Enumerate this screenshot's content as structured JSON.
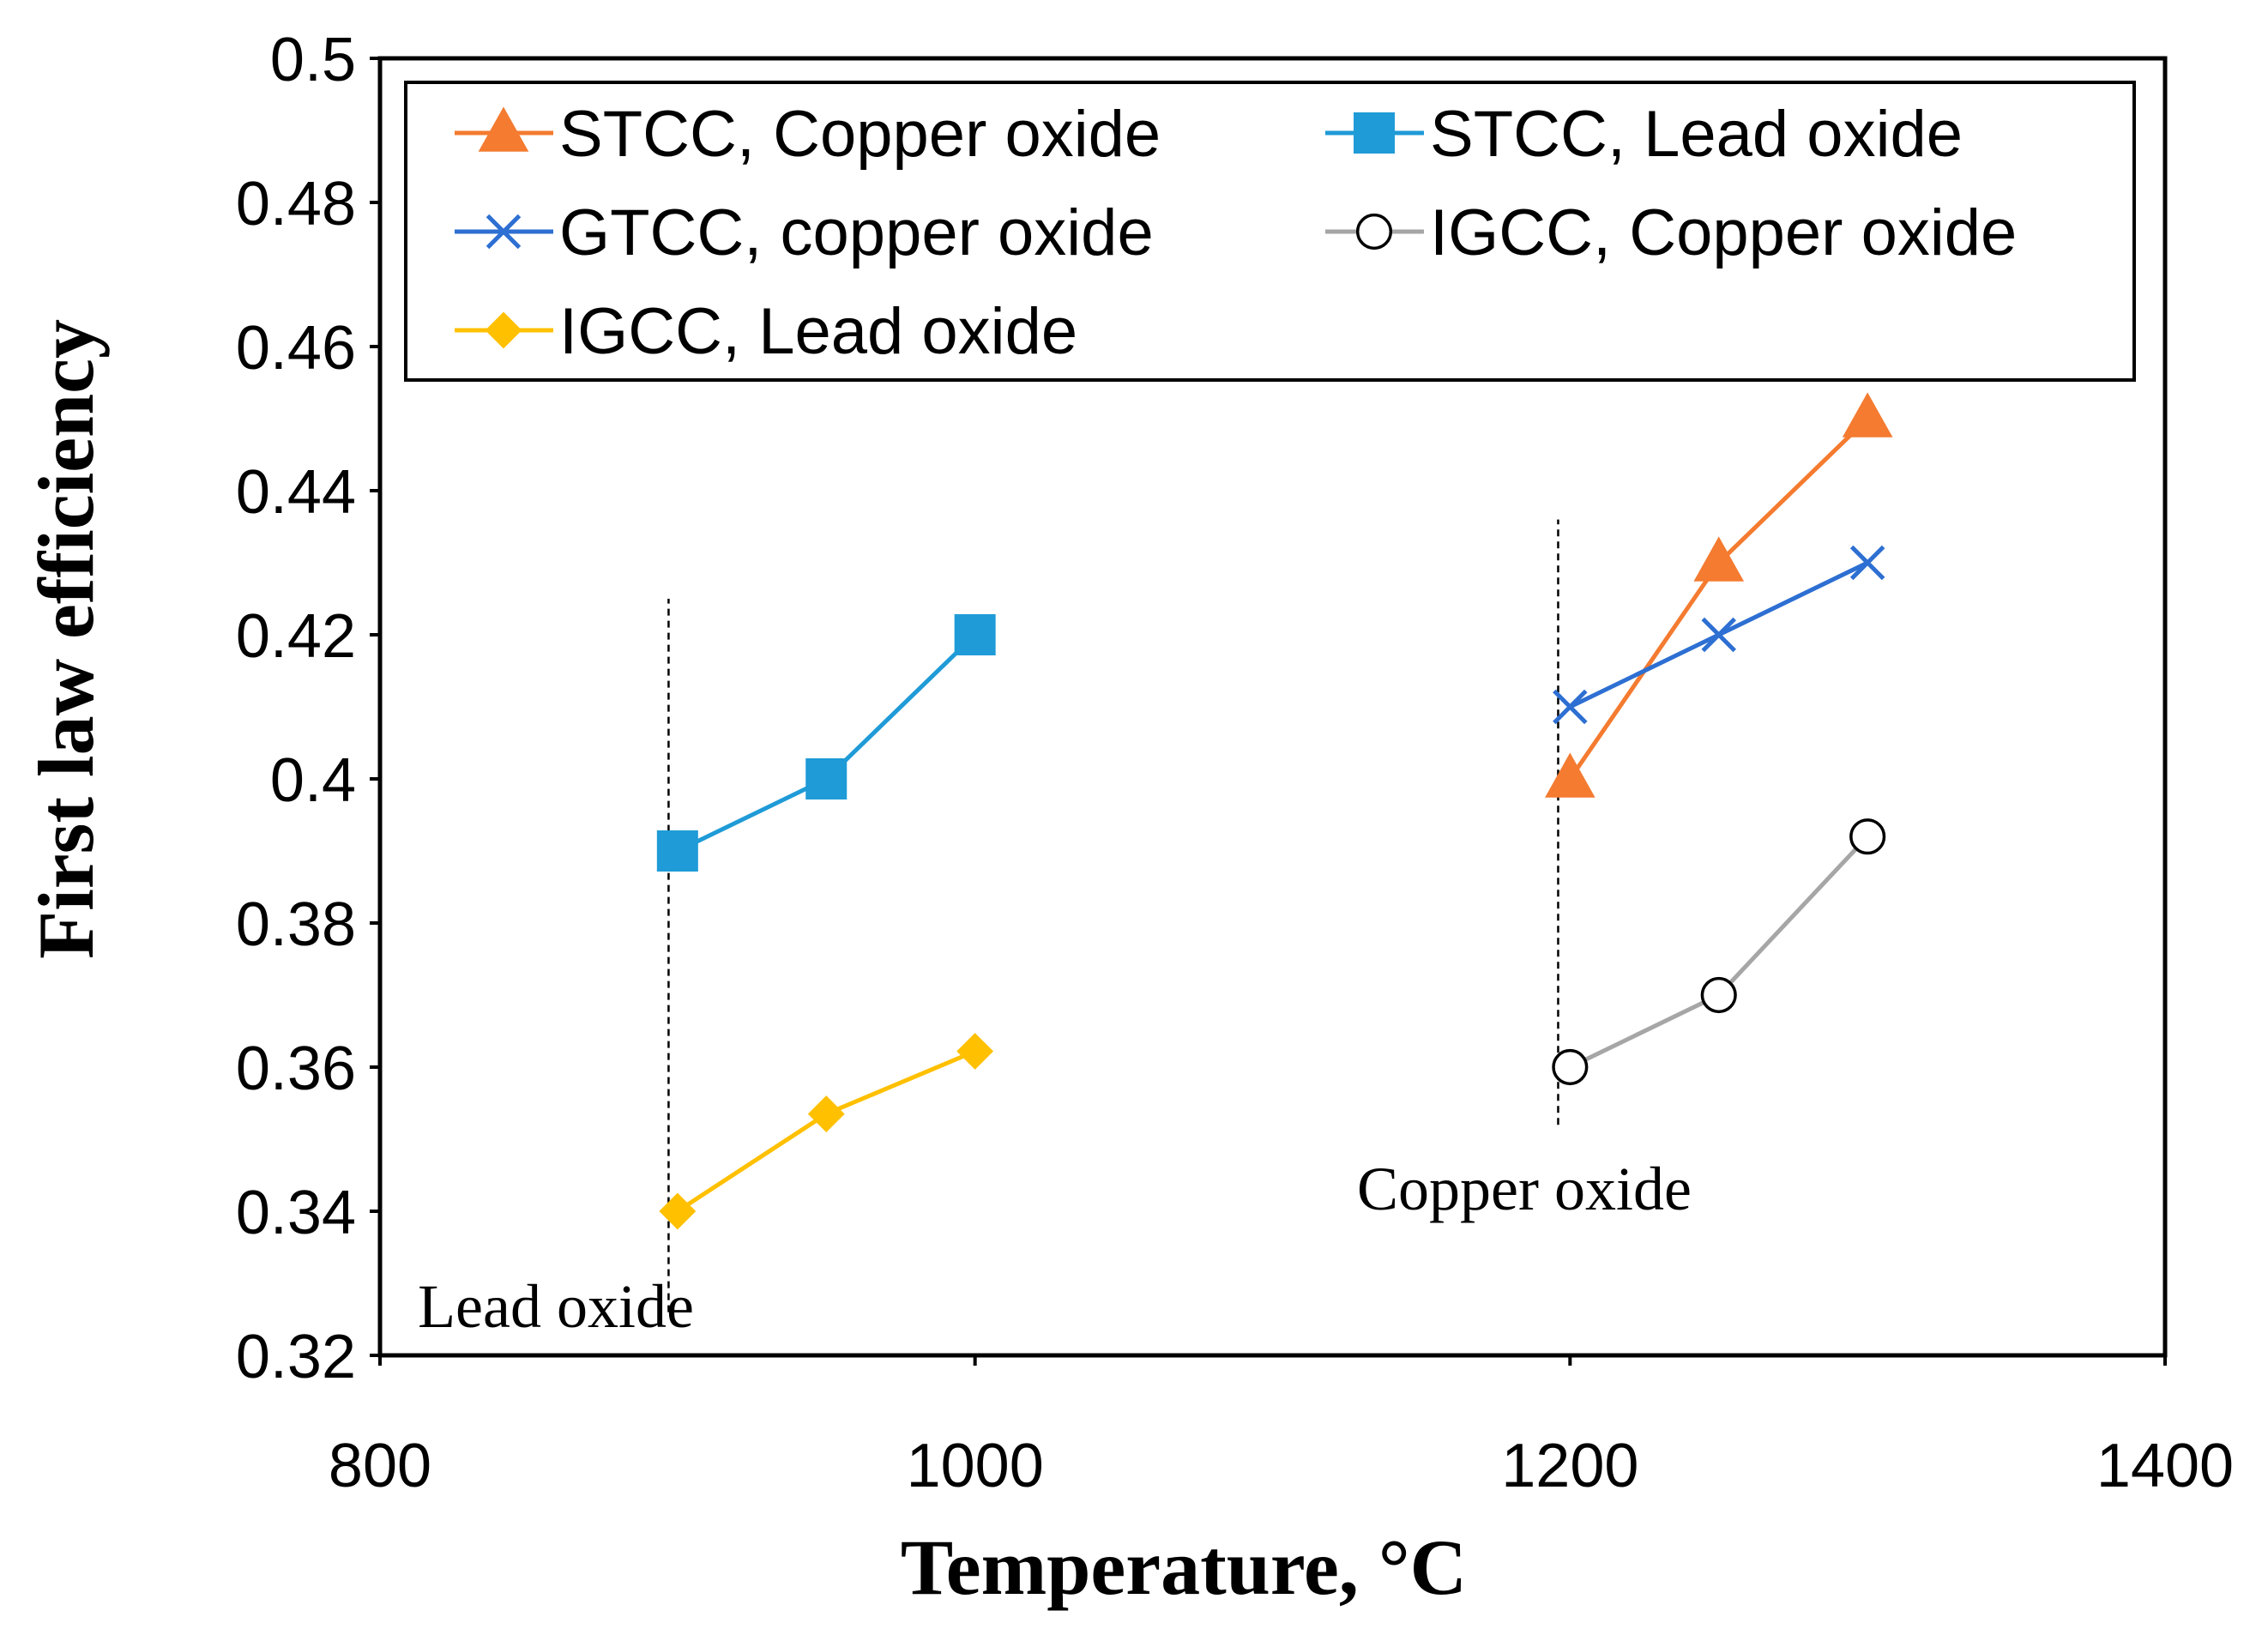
{
  "chart_data": {
    "type": "line",
    "title": "",
    "xlabel": "Temperature, °C",
    "ylabel": "First law efficiency",
    "xlim": [
      800,
      1400
    ],
    "ylim": [
      0.32,
      0.5
    ],
    "x_ticks": [
      800,
      1000,
      1200,
      1400
    ],
    "x_tick_labels": [
      "800",
      "1000",
      "1200",
      "1400"
    ],
    "y_ticks": [
      0.32,
      0.34,
      0.36,
      0.38,
      0.4,
      0.42,
      0.44,
      0.46,
      0.48,
      0.5
    ],
    "y_tick_labels": [
      "0.32",
      "0.34",
      "0.36",
      "0.38",
      "0.4",
      "0.42",
      "0.44",
      "0.46",
      "0.48",
      "0.5"
    ],
    "grid": false,
    "legend_position": "top",
    "series": [
      {
        "name": "STCC, Copper oxide",
        "color": "#f47b30",
        "marker": "triangle",
        "x": [
          1200,
          1250,
          1300
        ],
        "y": [
          0.4,
          0.43,
          0.45
        ]
      },
      {
        "name": "STCC, Lead oxide",
        "color": "#1f9bd7",
        "marker": "square",
        "x": [
          900,
          950,
          1000
        ],
        "y": [
          0.39,
          0.4,
          0.42
        ]
      },
      {
        "name": "GTCC, copper oxide",
        "color": "#2d6fd2",
        "marker": "x",
        "x": [
          1200,
          1250,
          1300
        ],
        "y": [
          0.41,
          0.42,
          0.43
        ]
      },
      {
        "name": "IGCC, Copper oxide",
        "color": "#a6a6a6",
        "marker": "circle-open",
        "x": [
          1200,
          1250,
          1300
        ],
        "y": [
          0.36,
          0.37,
          0.392
        ]
      },
      {
        "name": "IGCC, Lead oxide",
        "color": "#ffc000",
        "marker": "diamond",
        "x": [
          900,
          950,
          1000
        ],
        "y": [
          0.34,
          0.3535,
          0.3622
        ]
      }
    ],
    "reference_lines": [
      {
        "x": 897,
        "y_from": 0.326,
        "y_to": 0.425,
        "label": "Lead oxide"
      },
      {
        "x": 1196,
        "y_from": 0.352,
        "y_to": 0.436,
        "label": "Copper oxide"
      }
    ]
  }
}
